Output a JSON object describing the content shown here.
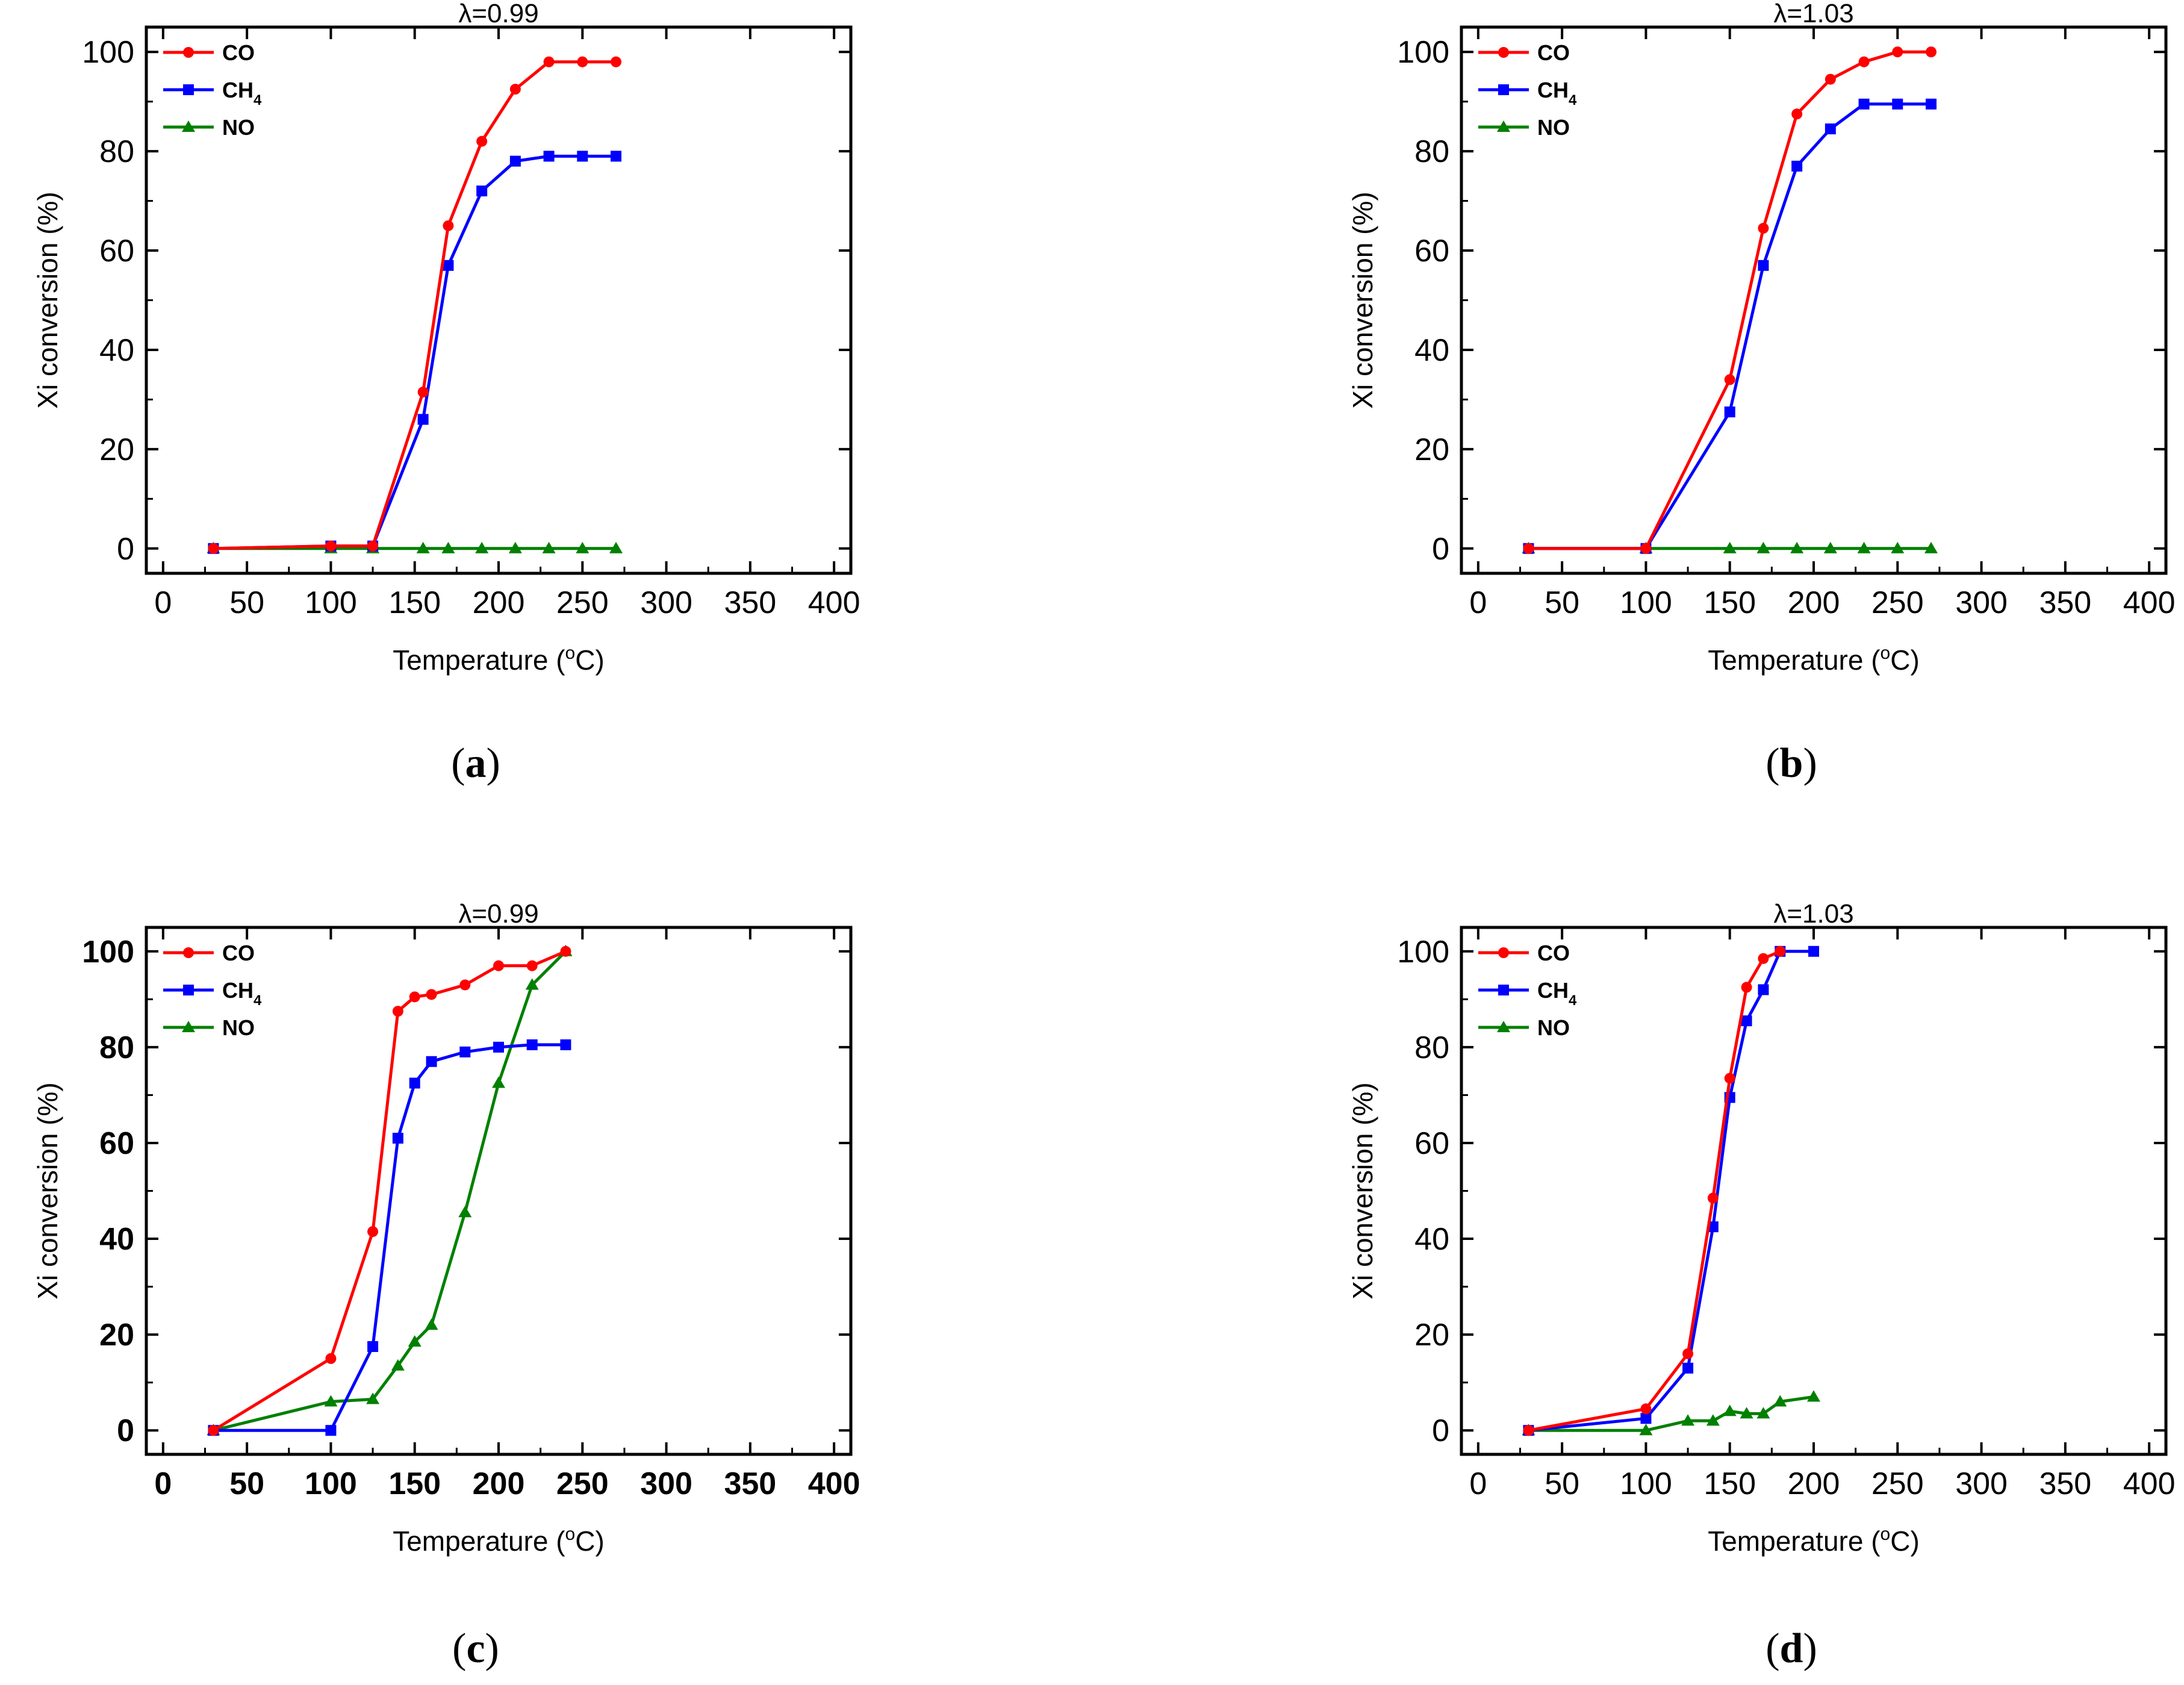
{
  "figure": {
    "captions": [
      "(a)",
      "(b)",
      "(c)",
      "(d)"
    ],
    "caption_parts": [
      {
        "open": "(",
        "letter": "a",
        "close": ")"
      },
      {
        "open": "(",
        "letter": "b",
        "close": ")"
      },
      {
        "open": "(",
        "letter": "c",
        "close": ")"
      },
      {
        "open": "(",
        "letter": "d",
        "close": ")"
      }
    ]
  },
  "colors": {
    "CO": "#ff0000",
    "CH4": "#0000ff",
    "NO": "#008000",
    "axis": "#000000"
  },
  "chart_data": [
    {
      "type": "line",
      "panel": "a",
      "title": "λ=0.99",
      "xlabel": "Temperature (°C)",
      "xlabel_parts": {
        "prefix": "Temperature (",
        "sup": "o",
        "suffix": "C)"
      },
      "ylabel": "Xi conversion (%)",
      "xlim": [
        -10,
        410
      ],
      "ylim": [
        -5,
        105
      ],
      "xticks": [
        0,
        50,
        100,
        150,
        200,
        250,
        300,
        350,
        400
      ],
      "yticks": [
        0,
        20,
        40,
        60,
        80,
        100
      ],
      "bold_ticks": false,
      "legend": "top-left",
      "series": [
        {
          "name": "CO",
          "label": "CO",
          "sub": "",
          "color": "#ff0000",
          "marker": "circle",
          "x": [
            30,
            100,
            125,
            155,
            170,
            190,
            210,
            230,
            250,
            270
          ],
          "y": [
            0,
            0.5,
            0.5,
            31.5,
            65,
            82,
            92.5,
            98,
            98,
            98
          ]
        },
        {
          "name": "CH4",
          "label": "CH",
          "sub": "4",
          "color": "#0000ff",
          "marker": "square",
          "x": [
            30,
            100,
            125,
            155,
            170,
            190,
            210,
            230,
            250,
            270
          ],
          "y": [
            0,
            0.5,
            0.5,
            26,
            57,
            72,
            78,
            79,
            79,
            79
          ]
        },
        {
          "name": "NO",
          "label": "NO",
          "sub": "",
          "color": "#008000",
          "marker": "triangle",
          "x": [
            30,
            100,
            125,
            155,
            170,
            190,
            210,
            230,
            250,
            270
          ],
          "y": [
            0,
            0,
            0,
            0,
            0,
            0,
            0,
            0,
            0,
            0
          ]
        }
      ]
    },
    {
      "type": "line",
      "panel": "b",
      "title": "λ=1.03",
      "xlabel": "Temperature (°C)",
      "xlabel_parts": {
        "prefix": "Temperature (",
        "sup": "o",
        "suffix": "C)"
      },
      "ylabel": "Xi conversion (%)",
      "xlim": [
        -10,
        410
      ],
      "ylim": [
        -5,
        105
      ],
      "xticks": [
        0,
        50,
        100,
        150,
        200,
        250,
        300,
        350,
        400
      ],
      "yticks": [
        0,
        20,
        40,
        60,
        80,
        100
      ],
      "bold_ticks": false,
      "legend": "top-left",
      "series": [
        {
          "name": "CO",
          "label": "CO",
          "sub": "",
          "color": "#ff0000",
          "marker": "circle",
          "x": [
            30,
            100,
            150,
            170,
            190,
            210,
            230,
            250,
            270
          ],
          "y": [
            0,
            0,
            34,
            64.5,
            87.5,
            94.5,
            98,
            100,
            100
          ]
        },
        {
          "name": "CH4",
          "label": "CH",
          "sub": "4",
          "color": "#0000ff",
          "marker": "square",
          "x": [
            30,
            100,
            150,
            170,
            190,
            210,
            230,
            250,
            270
          ],
          "y": [
            0,
            0,
            27.5,
            57,
            77,
            84.5,
            89.5,
            89.5,
            89.5
          ]
        },
        {
          "name": "NO",
          "label": "NO",
          "sub": "",
          "color": "#008000",
          "marker": "triangle",
          "x": [
            30,
            100,
            150,
            170,
            190,
            210,
            230,
            250,
            270
          ],
          "y": [
            0,
            0,
            0,
            0,
            0,
            0,
            0,
            0,
            0
          ]
        }
      ]
    },
    {
      "type": "line",
      "panel": "c",
      "title": "λ=0.99",
      "xlabel": "Temperature (°C)",
      "xlabel_parts": {
        "prefix": "Temperature (",
        "sup": "o",
        "suffix": "C)"
      },
      "ylabel": "Xi conversion (%)",
      "xlim": [
        -10,
        410
      ],
      "ylim": [
        -5,
        105
      ],
      "xticks": [
        0,
        50,
        100,
        150,
        200,
        250,
        300,
        350,
        400
      ],
      "yticks": [
        0,
        20,
        40,
        60,
        80,
        100
      ],
      "bold_ticks": true,
      "legend": "top-left",
      "series": [
        {
          "name": "CO",
          "label": "CO",
          "sub": "",
          "color": "#ff0000",
          "marker": "circle",
          "x": [
            30,
            100,
            125,
            140,
            150,
            160,
            180,
            200,
            220,
            240
          ],
          "y": [
            0,
            15,
            41.5,
            87.5,
            90.5,
            91,
            93,
            97,
            97,
            100
          ]
        },
        {
          "name": "CH4",
          "label": "CH",
          "sub": "4",
          "color": "#0000ff",
          "marker": "square",
          "x": [
            30,
            100,
            125,
            140,
            150,
            160,
            180,
            200,
            220,
            240
          ],
          "y": [
            0,
            0,
            17.5,
            61,
            72.5,
            77,
            79,
            80,
            80.5,
            80.5
          ]
        },
        {
          "name": "NO",
          "label": "NO",
          "sub": "",
          "color": "#008000",
          "marker": "triangle",
          "x": [
            30,
            100,
            125,
            140,
            150,
            160,
            180,
            200,
            220,
            240
          ],
          "y": [
            0,
            6,
            6.5,
            13.5,
            18.5,
            22,
            45.5,
            72.5,
            93,
            100
          ]
        }
      ]
    },
    {
      "type": "line",
      "panel": "d",
      "title": "λ=1.03",
      "xlabel": "Temperature (°C)",
      "xlabel_parts": {
        "prefix": "Temperature (",
        "sup": "o",
        "suffix": "C)"
      },
      "ylabel": "Xi conversion (%)",
      "xlim": [
        -10,
        410
      ],
      "ylim": [
        -5,
        105
      ],
      "xticks": [
        0,
        50,
        100,
        150,
        200,
        250,
        300,
        350,
        400
      ],
      "yticks": [
        0,
        20,
        40,
        60,
        80,
        100
      ],
      "bold_ticks": false,
      "legend": "top-left",
      "series": [
        {
          "name": "CO",
          "label": "CO",
          "sub": "",
          "color": "#ff0000",
          "marker": "circle",
          "x": [
            30,
            100,
            125,
            140,
            150,
            160,
            170,
            180
          ],
          "y": [
            0,
            4.5,
            16,
            48.5,
            73.5,
            92.5,
            98.5,
            100
          ]
        },
        {
          "name": "CH4",
          "label": "CH",
          "sub": "4",
          "color": "#0000ff",
          "marker": "square",
          "x": [
            30,
            100,
            125,
            140,
            150,
            160,
            170,
            180,
            200
          ],
          "y": [
            0,
            2.5,
            13,
            42.5,
            69.5,
            85.5,
            92,
            100,
            100
          ]
        },
        {
          "name": "NO",
          "label": "NO",
          "sub": "",
          "color": "#008000",
          "marker": "triangle",
          "x": [
            30,
            100,
            125,
            140,
            150,
            160,
            170,
            180,
            200
          ],
          "y": [
            0,
            0,
            2,
            2,
            4,
            3.5,
            3.5,
            6,
            7
          ]
        }
      ]
    }
  ]
}
